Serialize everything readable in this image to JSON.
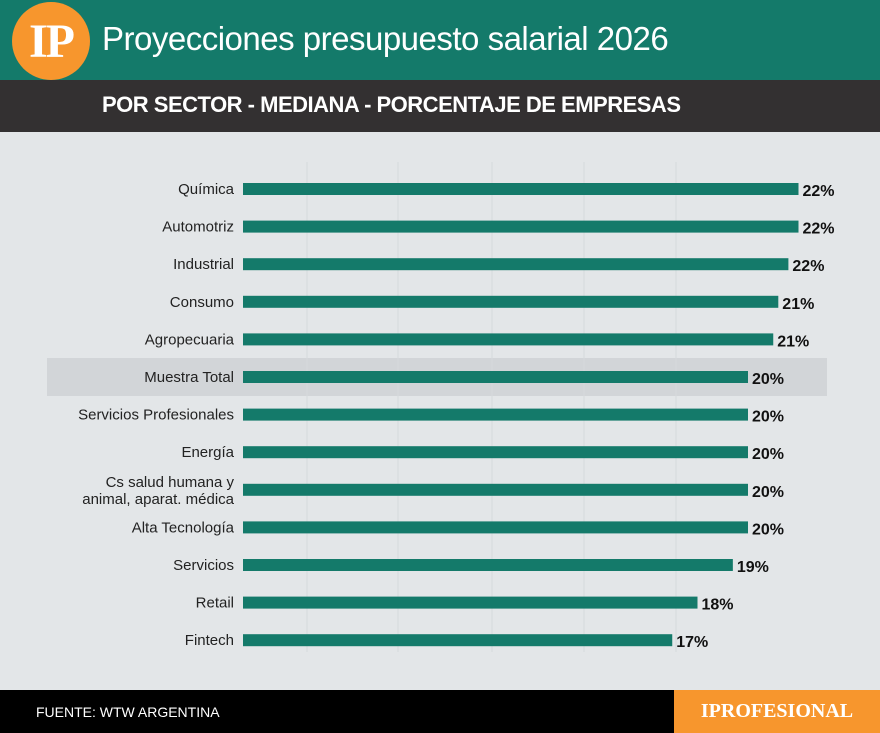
{
  "header": {
    "logo": "IP",
    "title": "Proyecciones presupuesto salarial 2026",
    "subtitle": "POR SECTOR - MEDIANA - PORCENTAJE DE EMPRESAS"
  },
  "footer": {
    "source": "FUENTE: WTW ARGENTINA",
    "brand": "IPROFESIONAL"
  },
  "colors": {
    "bar": "#147a6a",
    "header": "#147a6a",
    "subheader": "#333031",
    "accent": "#f7962d",
    "highlight_row": "#d2d5d8",
    "background": "#e3e6e8"
  },
  "chart_data": {
    "type": "bar",
    "orientation": "horizontal",
    "categories": [
      "Química",
      "Automotriz",
      "Industrial",
      "Consumo",
      "Agropecuaria",
      "Muestra Total",
      "Servicios Profesionales",
      "Energía",
      "Cs salud humana y\nanimal, aparat. médica",
      "Alta Tecnología",
      "Servicios",
      "Retail",
      "Fintech"
    ],
    "values": [
      22,
      22,
      21.6,
      21.2,
      21,
      20,
      20,
      20,
      20,
      20,
      19.4,
      18,
      17
    ],
    "labels": [
      "22%",
      "22%",
      "22%",
      "21%",
      "21%",
      "20%",
      "20%",
      "20%",
      "20%",
      "20%",
      "19%",
      "18%",
      "17%"
    ],
    "highlighted": "Muestra Total",
    "xlim": [
      0,
      24
    ],
    "grid": true
  }
}
